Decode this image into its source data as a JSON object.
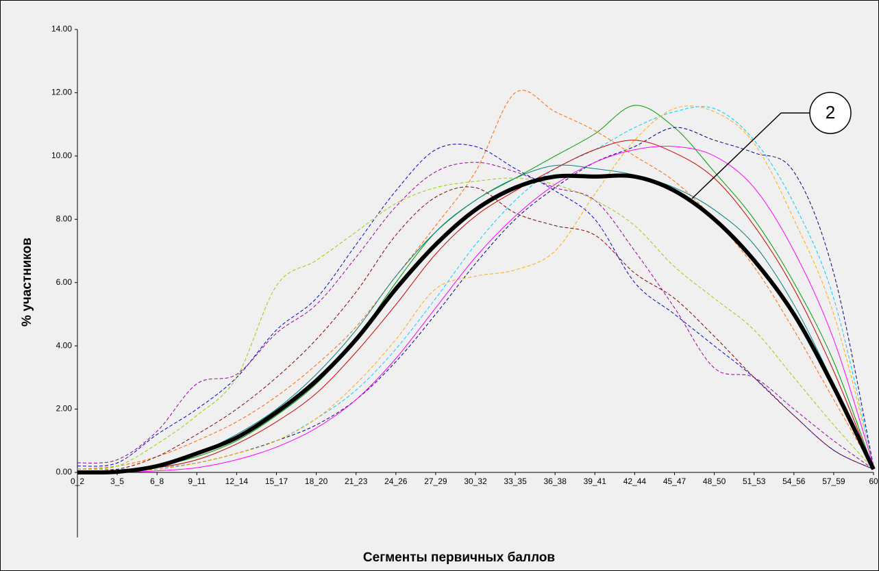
{
  "chart_data": {
    "type": "line",
    "xlabel": "Сегменты первичных баллов",
    "ylabel": "% участников",
    "annotation": "2",
    "categories": [
      "0_2",
      "3_5",
      "6_8",
      "9_11",
      "12_14",
      "15_17",
      "18_20",
      "21_23",
      "24_26",
      "27_29",
      "30_32",
      "33_35",
      "36_38",
      "39_41",
      "42_44",
      "45_47",
      "48_50",
      "51_53",
      "54_56",
      "57_59",
      "60"
    ],
    "ylim": [
      0,
      14
    ],
    "yticks": [
      {
        "value": 0,
        "label": "0.00"
      },
      {
        "value": 2,
        "label": "2.00"
      },
      {
        "value": 4,
        "label": "4.00"
      },
      {
        "value": 6,
        "label": "6.00"
      },
      {
        "value": 8,
        "label": "8.00"
      },
      {
        "value": 10,
        "label": "10.00"
      },
      {
        "value": 12,
        "label": "12.00"
      },
      {
        "value": 14,
        "label": "14.00"
      }
    ],
    "series": [
      {
        "color": "#ff6600",
        "dashed": true,
        "width": 1,
        "values": [
          0.1,
          0.2,
          0.5,
          1.0,
          1.6,
          2.4,
          3.4,
          4.6,
          6.2,
          7.8,
          9.5,
          12.0,
          11.4,
          10.8,
          10.0,
          9.2,
          8.0,
          6.5,
          4.5,
          2.3,
          0.1
        ]
      },
      {
        "color": "#0000cc",
        "dashed": true,
        "width": 1,
        "values": [
          0.2,
          0.3,
          1.2,
          2.0,
          3.0,
          4.5,
          5.5,
          7.2,
          8.9,
          10.2,
          10.3,
          9.6,
          8.9,
          8.0,
          6.0,
          5.0,
          4.0,
          3.0,
          1.8,
          0.7,
          0.1
        ]
      },
      {
        "color": "#990099",
        "dashed": true,
        "width": 1,
        "values": [
          0.3,
          0.4,
          1.3,
          2.8,
          3.1,
          4.4,
          5.3,
          6.8,
          8.4,
          9.5,
          9.8,
          9.5,
          9.0,
          8.6,
          7.0,
          5.2,
          3.3,
          3.0,
          2.0,
          1.0,
          0.1
        ]
      },
      {
        "color": "#009900",
        "dashed": false,
        "width": 1,
        "values": [
          0,
          0.05,
          0.2,
          0.5,
          1.0,
          1.8,
          2.8,
          4.2,
          6.0,
          7.6,
          8.6,
          9.3,
          10.0,
          10.7,
          11.6,
          10.9,
          9.5,
          8.0,
          6.0,
          3.5,
          0.1
        ]
      },
      {
        "color": "#00ccff",
        "dashed": true,
        "width": 1,
        "values": [
          0.1,
          0.1,
          0.15,
          0.3,
          0.6,
          1.0,
          1.7,
          2.6,
          3.9,
          5.5,
          7.2,
          8.6,
          9.6,
          10.2,
          10.9,
          11.4,
          11.5,
          10.5,
          8.5,
          5.5,
          0.2
        ]
      },
      {
        "color": "#000080",
        "dashed": true,
        "width": 1,
        "values": [
          0,
          0.02,
          0.1,
          0.3,
          0.6,
          1.0,
          1.5,
          2.3,
          3.5,
          5.0,
          6.6,
          8.0,
          9.0,
          9.8,
          10.3,
          10.9,
          10.5,
          10.1,
          9.5,
          6.3,
          0.2
        ]
      },
      {
        "color": "#99cc00",
        "dashed": true,
        "width": 1,
        "values": [
          0.1,
          0.2,
          0.9,
          1.8,
          3.0,
          5.9,
          6.7,
          7.6,
          8.5,
          9.0,
          9.2,
          9.3,
          9.1,
          8.6,
          7.8,
          6.5,
          5.5,
          4.5,
          3.0,
          1.5,
          0.1
        ]
      },
      {
        "color": "#ffaa00",
        "dashed": true,
        "width": 1,
        "values": [
          0,
          0.02,
          0.1,
          0.3,
          0.6,
          1.0,
          1.7,
          2.8,
          4.2,
          5.8,
          6.2,
          6.4,
          7.0,
          8.8,
          10.5,
          11.5,
          11.4,
          10.4,
          8.0,
          5.0,
          0.2
        ]
      },
      {
        "color": "#cc0000",
        "dashed": false,
        "width": 1,
        "values": [
          0,
          0.02,
          0.15,
          0.4,
          0.9,
          1.6,
          2.5,
          3.8,
          5.3,
          6.9,
          8.1,
          8.9,
          9.6,
          10.2,
          10.5,
          10.1,
          9.3,
          7.8,
          5.8,
          3.2,
          0.1
        ]
      },
      {
        "color": "#ff00ff",
        "dashed": false,
        "width": 1,
        "values": [
          0,
          0,
          0.05,
          0.15,
          0.4,
          0.8,
          1.4,
          2.3,
          3.6,
          5.2,
          6.8,
          8.1,
          9.1,
          9.8,
          10.2,
          10.3,
          10.0,
          9.0,
          7.0,
          4.2,
          0.2
        ]
      },
      {
        "color": "#800000",
        "dashed": true,
        "width": 1,
        "values": [
          0.05,
          0.1,
          0.5,
          1.2,
          2.0,
          3.0,
          4.2,
          5.7,
          7.5,
          8.7,
          9.0,
          8.2,
          7.8,
          7.5,
          6.3,
          5.5,
          4.3,
          3.0,
          1.8,
          0.7,
          0.1
        ]
      },
      {
        "color": "#008080",
        "dashed": false,
        "width": 1,
        "values": [
          0,
          0.03,
          0.2,
          0.6,
          1.2,
          2.0,
          3.1,
          4.5,
          6.2,
          7.6,
          8.6,
          9.3,
          9.7,
          9.6,
          9.4,
          9.0,
          8.3,
          7.2,
          5.3,
          2.8,
          0.1
        ]
      },
      {
        "color": "#000000",
        "dashed": false,
        "width": 6,
        "values": [
          0,
          0.02,
          0.2,
          0.6,
          1.1,
          1.9,
          2.9,
          4.2,
          5.8,
          7.2,
          8.3,
          9.0,
          9.35,
          9.35,
          9.35,
          8.9,
          8.0,
          6.7,
          5.0,
          2.7,
          0.1
        ]
      }
    ]
  }
}
